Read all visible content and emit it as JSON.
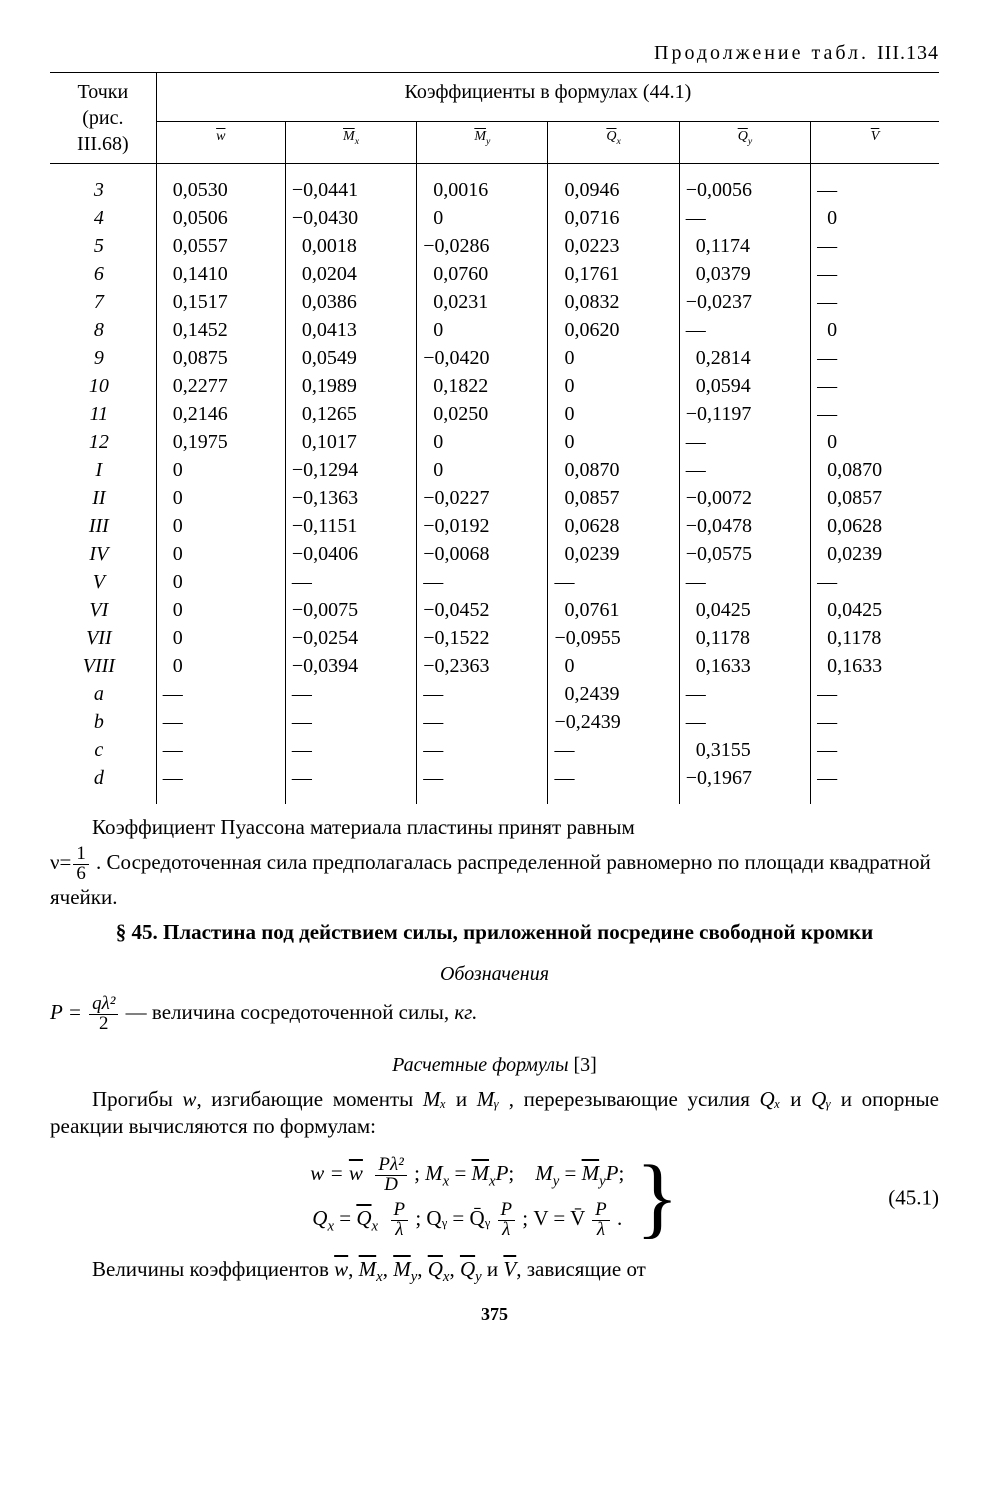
{
  "continuation": {
    "word": "Продолжение",
    "tabl": "табл.",
    "num": "III.134"
  },
  "table": {
    "leftHeader1": "Точки",
    "leftHeader2": "(рис.",
    "leftHeader3": "III.68)",
    "groupHeader": "Коэффициенты в формулах (44.1)",
    "cols": [
      "w̄",
      "M̄ₓ",
      "M̄ᵧ",
      "Q̄ₓ",
      "Q̄ᵧ",
      "V̄"
    ],
    "rows": [
      {
        "p": "3",
        "c": [
          "0,0530",
          "−0,0441",
          "0,0016",
          "0,0946",
          "−0,0056",
          "—"
        ]
      },
      {
        "p": "4",
        "c": [
          "0,0506",
          "−0,0430",
          "0",
          "0,0716",
          "—",
          "0"
        ]
      },
      {
        "p": "5",
        "c": [
          "0,0557",
          "0,0018",
          "−0,0286",
          "0,0223",
          "0,1174",
          "—"
        ]
      },
      {
        "p": "6",
        "c": [
          "0,1410",
          "0,0204",
          "0,0760",
          "0,1761",
          "0,0379",
          "—"
        ]
      },
      {
        "p": "7",
        "c": [
          "0,1517",
          "0,0386",
          "0,0231",
          "0,0832",
          "−0,0237",
          "—"
        ]
      },
      {
        "p": "8",
        "c": [
          "0,1452",
          "0,0413",
          "0",
          "0,0620",
          "—",
          "0"
        ]
      },
      {
        "p": "9",
        "c": [
          "0,0875",
          "0,0549",
          "−0,0420",
          "0",
          "0,2814",
          "—"
        ]
      },
      {
        "p": "10",
        "c": [
          "0,2277",
          "0,1989",
          "0,1822",
          "0",
          "0,0594",
          "—"
        ]
      },
      {
        "p": "11",
        "c": [
          "0,2146",
          "0,1265",
          "0,0250",
          "0",
          "−0,1197",
          "—"
        ]
      },
      {
        "p": "12",
        "c": [
          "0,1975",
          "0,1017",
          "0",
          "0",
          "—",
          "0"
        ]
      },
      {
        "p": "I",
        "c": [
          "0",
          "−0,1294",
          "0",
          "0,0870",
          "—",
          "0,0870"
        ]
      },
      {
        "p": "II",
        "c": [
          "0",
          "−0,1363",
          "−0,0227",
          "0,0857",
          "−0,0072",
          "0,0857"
        ]
      },
      {
        "p": "III",
        "c": [
          "0",
          "−0,1151",
          "−0,0192",
          "0,0628",
          "−0,0478",
          "0,0628"
        ]
      },
      {
        "p": "IV",
        "c": [
          "0",
          "−0,0406",
          "−0,0068",
          "0,0239",
          "−0,0575",
          "0,0239"
        ]
      },
      {
        "p": "V",
        "c": [
          "0",
          "—",
          "—",
          "—",
          "—",
          "—"
        ]
      },
      {
        "p": "VI",
        "c": [
          "0",
          "−0,0075",
          "−0,0452",
          "0,0761",
          "0,0425",
          "0,0425"
        ]
      },
      {
        "p": "VII",
        "c": [
          "0",
          "−0,0254",
          "−0,1522",
          "−0,0955",
          "0,1178",
          "0,1178"
        ]
      },
      {
        "p": "VIII",
        "c": [
          "0",
          "−0,0394",
          "−0,2363",
          "0",
          "0,1633",
          "0,1633"
        ]
      },
      {
        "p": "a",
        "c": [
          "—",
          "—",
          "—",
          "0,2439",
          "—",
          "—"
        ]
      },
      {
        "p": "b",
        "c": [
          "—",
          "—",
          "—",
          "−0,2439",
          "—",
          "—"
        ]
      },
      {
        "p": "c",
        "c": [
          "—",
          "—",
          "—",
          "—",
          "0,3155",
          "—"
        ]
      },
      {
        "p": "d",
        "c": [
          "—",
          "—",
          "—",
          "—",
          "−0,1967",
          "—"
        ]
      }
    ]
  },
  "text": {
    "p1a": "Коэффициент Пуассона материала пластины принят равным ",
    "nu": "ν=",
    "frac1": {
      "n": "1",
      "d": "6"
    },
    "p1b": " . Сосредоточенная сила предполагалась распределенной равномерно по площади квадратной ячейки.",
    "secTitle": "§ 45. Пластина под действием силы, приложенной посредине свободной кромки",
    "sub1": "Обозначения",
    "Peq_pre": "P = ",
    "Pfrac": {
      "n": "qλ²",
      "d": "2"
    },
    "Peq_post": " — величина сосредоточенной силы, ",
    "kg": "кг.",
    "sub2": "Расчетные формулы ",
    "ref": "[3]",
    "p2a": "Прогибы ",
    "w": "w",
    "p2b": ", изгибающие моменты ",
    "Mx": "Mₓ",
    "and": " и ",
    "My": "Mᵧ",
    "p2c": " , перерезывающие усилия ",
    "Qx": "Qₓ",
    "Qy": "Qᵧ",
    "p2d": " и опорные реакции вычисляются по формулам:",
    "eq": {
      "r1a": "w = ",
      "r1_ov": "w̄",
      "r1frac": {
        "n": "Pλ²",
        "d": "D"
      },
      "sep": " ;   ",
      "r1b": "Mₓ = M̄ₓP;   Mᵧ = M̄ᵧP;",
      "r2a": "Qₓ = Q̄ₓ ",
      "r2frac": {
        "n": "P",
        "d": "λ"
      },
      "r2b": " ;   Qᵧ = Q̄ᵧ ",
      "r2c": " ;   V = V̄ ",
      "dot": " .",
      "num": "(45.1)"
    },
    "p3a": "Величины коэффициентов ",
    "list": "w̄, M̄ₓ, M̄ᵧ, Q̄ₓ, Q̄ᵧ",
    "p3b": " и ",
    "Vb": "V̄",
    "p3c": ", зависящие от",
    "page": "375"
  }
}
